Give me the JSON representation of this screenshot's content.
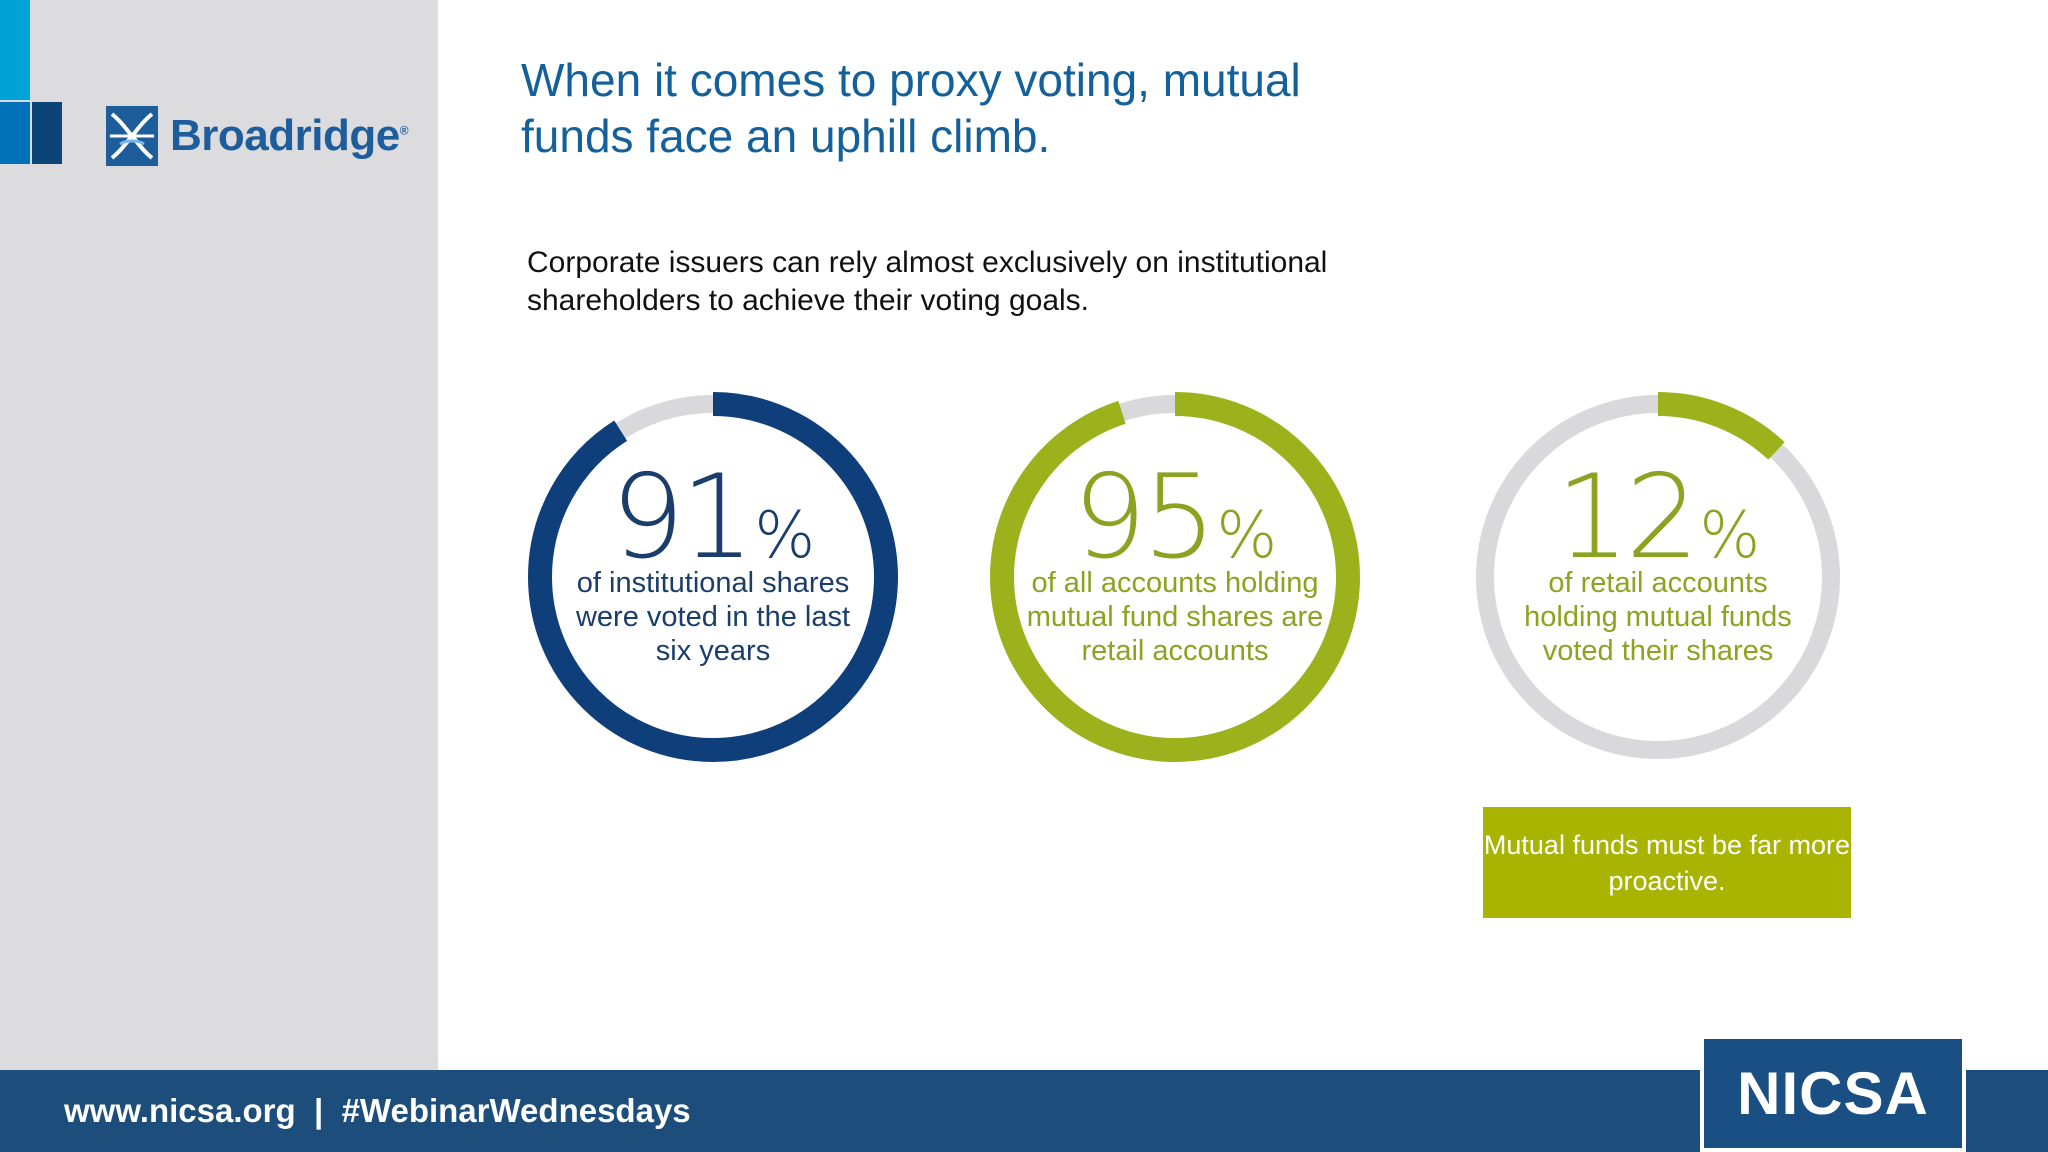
{
  "slide": {
    "title": "When it comes to proxy voting, mutual funds face an uphill climb.",
    "subtitle": "Corporate issuers can rely almost exclusively on institutional shareholders to achieve their voting goals."
  },
  "brand": {
    "logo_text": "Broadridge",
    "logo_reg": "®",
    "logo_icon": "broadridge-logo-icon"
  },
  "stats": [
    {
      "value": "91",
      "unit": "%",
      "fraction": 0.91,
      "caption": "of institutional shares were voted in the last six years",
      "color": "#0f3f7a",
      "text_color": "#1a3d6b"
    },
    {
      "value": "95",
      "unit": "%",
      "fraction": 0.95,
      "caption": "of all accounts holding mutual fund shares are retail accounts",
      "color": "#9cb21c",
      "text_color": "#8ba320"
    },
    {
      "value": "12",
      "unit": "%",
      "fraction": 0.12,
      "caption": "of retail accounts holding mutual funds voted their shares",
      "color": "#9cb21c",
      "text_color": "#8ba320"
    }
  ],
  "ring_track_color": "#d9d9dc",
  "callout": {
    "text": "Mutual funds must be far more proactive.",
    "color": "#a8b400"
  },
  "footer": {
    "text": "www.nicsa.org  |  #WebinarWednesdays",
    "org_logo": "NICSA",
    "color": "#1d4d7b"
  }
}
